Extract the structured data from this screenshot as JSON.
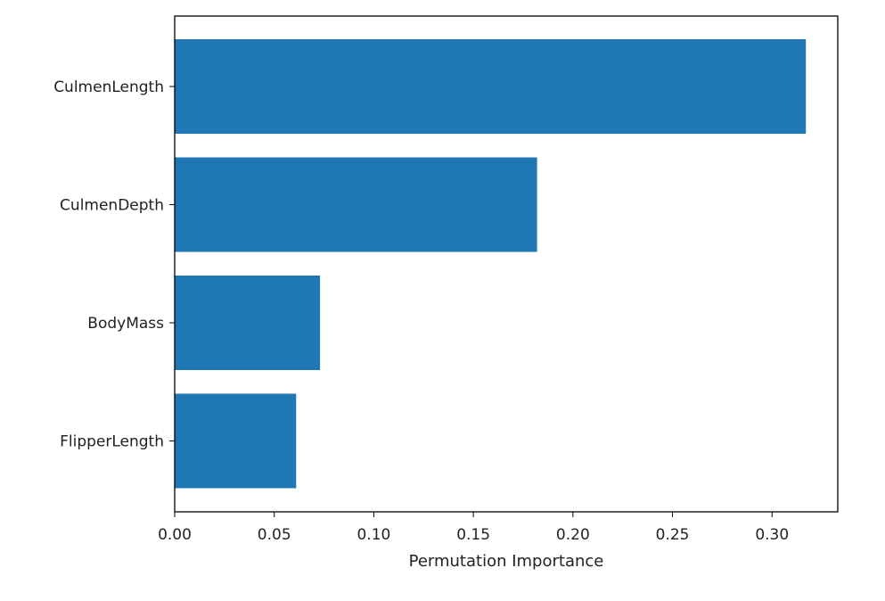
{
  "chart_data": {
    "type": "bar",
    "orientation": "horizontal",
    "categories": [
      "CulmenLength",
      "CulmenDepth",
      "BodyMass",
      "FlipperLength"
    ],
    "values": [
      0.317,
      0.182,
      0.073,
      0.061
    ],
    "xlabel": "Permutation Importance",
    "ylabel": "",
    "xlim": [
      0,
      0.333
    ],
    "xticks": [
      0.0,
      0.05,
      0.1,
      0.15,
      0.2,
      0.25,
      0.3
    ],
    "xtick_labels": [
      "0.00",
      "0.05",
      "0.10",
      "0.15",
      "0.20",
      "0.25",
      "0.30"
    ],
    "bar_color": "#1f77b4",
    "grid": false,
    "legend": "none"
  }
}
